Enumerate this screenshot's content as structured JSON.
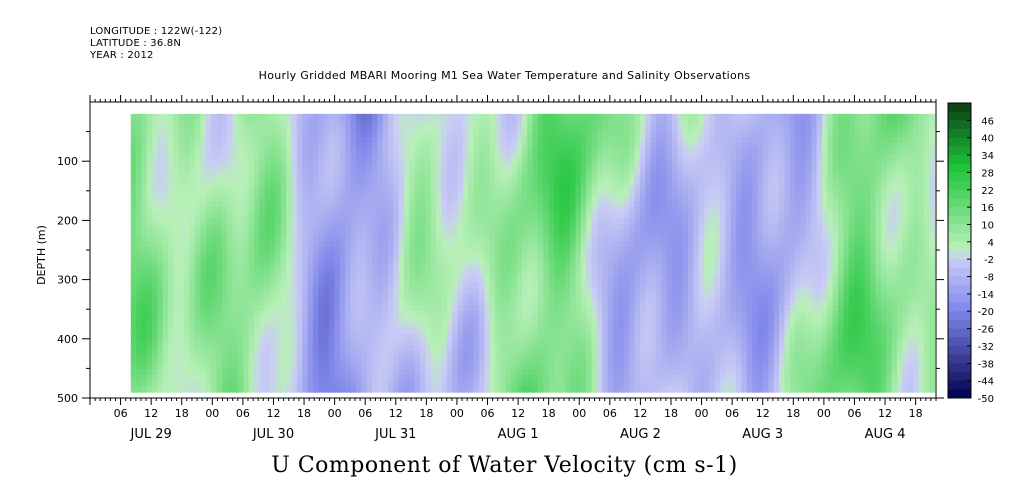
{
  "header": {
    "longitude": "LONGITUDE : 122W(-122)",
    "latitude": "LATITUDE : 36.8N",
    "year": "YEAR : 2012"
  },
  "chart_data": {
    "type": "heatmap",
    "title": "Hourly Gridded MBARI Mooring M1 Sea Water Temperature and Salinity Observations",
    "xlabel": "U Component of Water Velocity (cm s-1)",
    "ylabel": "DEPTH (m)",
    "ylim": [
      500,
      0
    ],
    "y_ticks": [
      {
        "value": 100,
        "label": "100"
      },
      {
        "value": 200,
        "label": "200"
      },
      {
        "value": 300,
        "label": "300"
      },
      {
        "value": 400,
        "label": "400"
      },
      {
        "value": 500,
        "label": "500"
      }
    ],
    "x_hour_ticks": [
      {
        "hour": 6,
        "label": "06"
      },
      {
        "hour": 12,
        "label": "12"
      },
      {
        "hour": 18,
        "label": "18"
      },
      {
        "hour": 24,
        "label": "00"
      },
      {
        "hour": 30,
        "label": "06"
      },
      {
        "hour": 36,
        "label": "12"
      },
      {
        "hour": 42,
        "label": "18"
      },
      {
        "hour": 48,
        "label": "00"
      },
      {
        "hour": 54,
        "label": "06"
      },
      {
        "hour": 60,
        "label": "12"
      },
      {
        "hour": 66,
        "label": "18"
      },
      {
        "hour": 72,
        "label": "00"
      },
      {
        "hour": 78,
        "label": "06"
      },
      {
        "hour": 84,
        "label": "12"
      },
      {
        "hour": 90,
        "label": "18"
      },
      {
        "hour": 96,
        "label": "00"
      },
      {
        "hour": 102,
        "label": "06"
      },
      {
        "hour": 108,
        "label": "12"
      },
      {
        "hour": 114,
        "label": "18"
      },
      {
        "hour": 120,
        "label": "00"
      },
      {
        "hour": 126,
        "label": "06"
      },
      {
        "hour": 132,
        "label": "12"
      },
      {
        "hour": 138,
        "label": "18"
      },
      {
        "hour": 144,
        "label": "00"
      },
      {
        "hour": 150,
        "label": "06"
      },
      {
        "hour": 156,
        "label": "12"
      },
      {
        "hour": 162,
        "label": "18"
      }
    ],
    "x_date_labels": [
      {
        "hour": 12,
        "label": "JUL 29"
      },
      {
        "hour": 36,
        "label": "JUL 30"
      },
      {
        "hour": 60,
        "label": "JUL 31"
      },
      {
        "hour": 84,
        "label": "AUG  1"
      },
      {
        "hour": 108,
        "label": "AUG  2"
      },
      {
        "hour": 132,
        "label": "AUG  3"
      },
      {
        "hour": 156,
        "label": "AUG  4"
      }
    ],
    "xlim_hours": [
      0,
      166
    ],
    "data_depth_range": [
      20,
      490
    ],
    "data_start_hour": 8,
    "colorbar": {
      "labels": [
        "46",
        "40",
        "34",
        "28",
        "22",
        "16",
        "10",
        "4",
        "-2",
        "-8",
        "-14",
        "-20",
        "-26",
        "-32",
        "-38",
        "-44",
        "-50"
      ],
      "levels": [
        52,
        49,
        46,
        43,
        40,
        37,
        34,
        31,
        28,
        25,
        22,
        19,
        16,
        13,
        10,
        7,
        4,
        1,
        -2,
        -5,
        -8,
        -11,
        -14,
        -17,
        -20,
        -23,
        -26,
        -29,
        -32,
        -35,
        -38,
        -41,
        -44,
        -47,
        -50
      ]
    },
    "colors": {
      "dark_green": "#0d3d14",
      "green": "#1dc43a",
      "light_green": "#b8f0b8",
      "light_blue": "#c9ccf5",
      "blue": "#7f86ea",
      "dark_blue": "#00004d"
    },
    "grid": false
  }
}
